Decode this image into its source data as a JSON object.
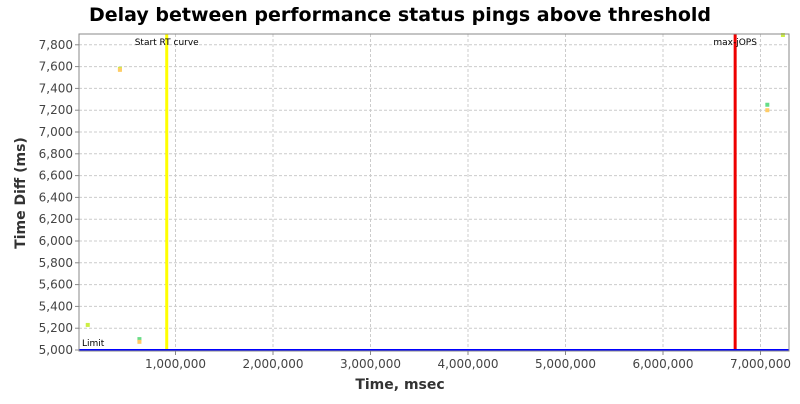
{
  "chart_data": {
    "type": "scatter",
    "title": "Delay between performance status pings above threshold",
    "xlabel": "Time, msec",
    "ylabel": "Time Diff (ms)",
    "xlim": [
      0,
      7300000
    ],
    "ylim": [
      5000,
      7900
    ],
    "grid": true,
    "x_ticks": [
      1000000,
      2000000,
      3000000,
      4000000,
      5000000,
      6000000,
      7000000
    ],
    "x_tick_labels": [
      "1,000,000",
      "2,000,000",
      "3,000,000",
      "4,000,000",
      "5,000,000",
      "6,000,000",
      "7,000,000"
    ],
    "y_ticks": [
      5000,
      5200,
      5400,
      5600,
      5800,
      6000,
      6200,
      6400,
      6600,
      6800,
      7000,
      7200,
      7400,
      7600,
      7800
    ],
    "y_tick_labels": [
      "5,000",
      "5,200",
      "5,400",
      "5,600",
      "5,800",
      "6,000",
      "6,200",
      "6,400",
      "6,600",
      "6,800",
      "7,000",
      "7,200",
      "7,400",
      "7,600",
      "7,800"
    ],
    "series": [
      {
        "color": "#ccee44",
        "points": [
          [
            100000,
            5230
          ],
          [
            430000,
            7580
          ],
          [
            7230000,
            7890
          ]
        ]
      },
      {
        "color": "#66dd88",
        "points": [
          [
            630000,
            5100
          ],
          [
            7070000,
            7250
          ]
        ]
      },
      {
        "color": "#ffcc66",
        "points": [
          [
            630000,
            5075
          ],
          [
            7070000,
            7200
          ],
          [
            430000,
            7570
          ]
        ]
      }
    ],
    "markers": [
      {
        "label": "Start RT curve",
        "x": 910000,
        "color": "#ffff00",
        "orientation": "vertical"
      },
      {
        "label": "max-jOPS",
        "x": 6740000,
        "color": "#ee0000",
        "orientation": "vertical"
      },
      {
        "label": "Limit",
        "y": 5000,
        "color": "#0000ff",
        "orientation": "horizontal"
      }
    ]
  }
}
